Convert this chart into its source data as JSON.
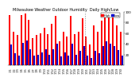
{
  "title": "Milwaukee Weather Outdoor Humidity  Daily High/Low",
  "title_fontsize": 3.5,
  "bar_width": 0.42,
  "high_color": "#ff0000",
  "low_color": "#0000cc",
  "background_color": "#ffffff",
  "ylim": [
    0,
    100
  ],
  "categories": [
    "1/1",
    "1/2",
    "1/3",
    "1/4",
    "1/5",
    "1/6",
    "1/7",
    "1/8",
    "1/9",
    "1/10",
    "1/11",
    "1/12",
    "1/13",
    "1/14",
    "1/15",
    "1/16",
    "1/17",
    "1/18",
    "1/19",
    "1/20",
    "1/21",
    "1/22",
    "1/23",
    "1/24",
    "1/25",
    "1/26",
    "1/27",
    "1/28",
    "1/29",
    "1/30"
  ],
  "highs": [
    93,
    62,
    57,
    94,
    96,
    84,
    50,
    56,
    60,
    70,
    58,
    77,
    92,
    44,
    63,
    53,
    92,
    58,
    63,
    88,
    54,
    38,
    74,
    63,
    83,
    95,
    94,
    92,
    74,
    63
  ],
  "lows": [
    38,
    22,
    18,
    42,
    46,
    30,
    18,
    20,
    24,
    30,
    20,
    30,
    40,
    16,
    24,
    18,
    40,
    20,
    26,
    36,
    18,
    14,
    26,
    22,
    36,
    44,
    40,
    36,
    28,
    18
  ],
  "legend_high": "High",
  "legend_low": "Low",
  "yticks": [
    20,
    40,
    60,
    80,
    100
  ],
  "tick_fontsize": 3.0,
  "xlabel_fontsize": 2.5,
  "dashed_vline_index": 20
}
